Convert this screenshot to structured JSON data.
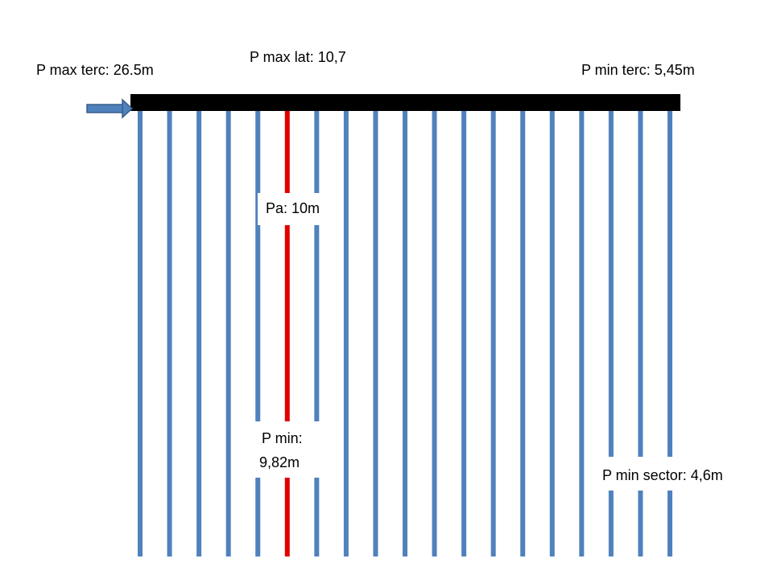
{
  "labels": {
    "max_lateral": "P max lat: 10,7",
    "max_terciary": "P max terc: 26.5m",
    "min_terciary": "P min terc: 5,45m",
    "pa": "Pa: 10m",
    "min_lateral": [
      "P min:",
      "9,82m"
    ],
    "min_sector": "P min sector: 4,6m"
  }
}
